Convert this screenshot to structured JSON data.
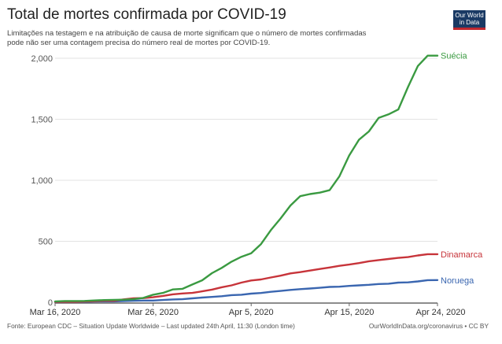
{
  "header": {
    "title": "Total de mortes confirmada por COVID-19",
    "subtitle_line1": "Limitações na testagem e na atribuição de causa de morte significam que o número de mortes confirmadas",
    "subtitle_line2": "pode não ser uma contagem precisa do número real de mortes por COVID-19.",
    "logo_line1": "Our World",
    "logo_line2": "in Data"
  },
  "footer": {
    "source": "Fonte: European CDC – Situation Update Worldwide – Last updated 24th April, 11:30 (London time)",
    "credit": "OurWorldInData.org/coronavirus • CC BY"
  },
  "colors": {
    "Suécia": "#3a9a41",
    "Dinamarca": "#c7343a",
    "Noruega": "#3a66b0",
    "grid": "#e3e3e3",
    "axis": "#666666"
  },
  "chart_data": {
    "type": "line",
    "title": "Total de mortes confirmada por COVID-19",
    "xlabel": "",
    "ylabel": "",
    "x_start": "2020-03-16",
    "x_end": "2020-04-24",
    "x_ticks": [
      "Mar 16, 2020",
      "Mar 26, 2020",
      "Apr 5, 2020",
      "Apr 15, 2020",
      "Apr 24, 2020"
    ],
    "x_tick_days": [
      0,
      10,
      20,
      30,
      39
    ],
    "y_ticks": [
      0,
      500,
      1000,
      1500,
      2000
    ],
    "y_tick_labels": [
      "0",
      "500",
      "1,000",
      "1,500",
      "2,000"
    ],
    "ylim": [
      0,
      2000
    ],
    "grid": true,
    "legend": "inline-right",
    "series": [
      {
        "name": "Suécia",
        "values": [
          7,
          10,
          10,
          11,
          15,
          18,
          20,
          21,
          25,
          36,
          62,
          77,
          105,
          110,
          146,
          180,
          239,
          282,
          333,
          373,
          401,
          477,
          591,
          687,
          793,
          870,
          887,
          899,
          919,
          1033,
          1203,
          1333,
          1400,
          1511,
          1540,
          1580,
          1765,
          1937,
          2021,
          2021
        ]
      },
      {
        "name": "Dinamarca",
        "values": [
          3,
          4,
          4,
          6,
          9,
          13,
          13,
          24,
          32,
          34,
          41,
          52,
          65,
          72,
          77,
          90,
          104,
          123,
          139,
          161,
          179,
          187,
          203,
          218,
          237,
          247,
          260,
          273,
          285,
          299,
          309,
          321,
          336,
          346,
          355,
          364,
          370,
          384,
          394,
          394
        ]
      },
      {
        "name": "Noruega",
        "values": [
          1,
          3,
          3,
          3,
          6,
          7,
          7,
          10,
          12,
          14,
          14,
          19,
          23,
          25,
          32,
          39,
          44,
          50,
          59,
          62,
          71,
          76,
          86,
          93,
          101,
          108,
          113,
          119,
          126,
          128,
          134,
          139,
          143,
          150,
          152,
          161,
          163,
          171,
          181,
          182
        ]
      }
    ]
  }
}
